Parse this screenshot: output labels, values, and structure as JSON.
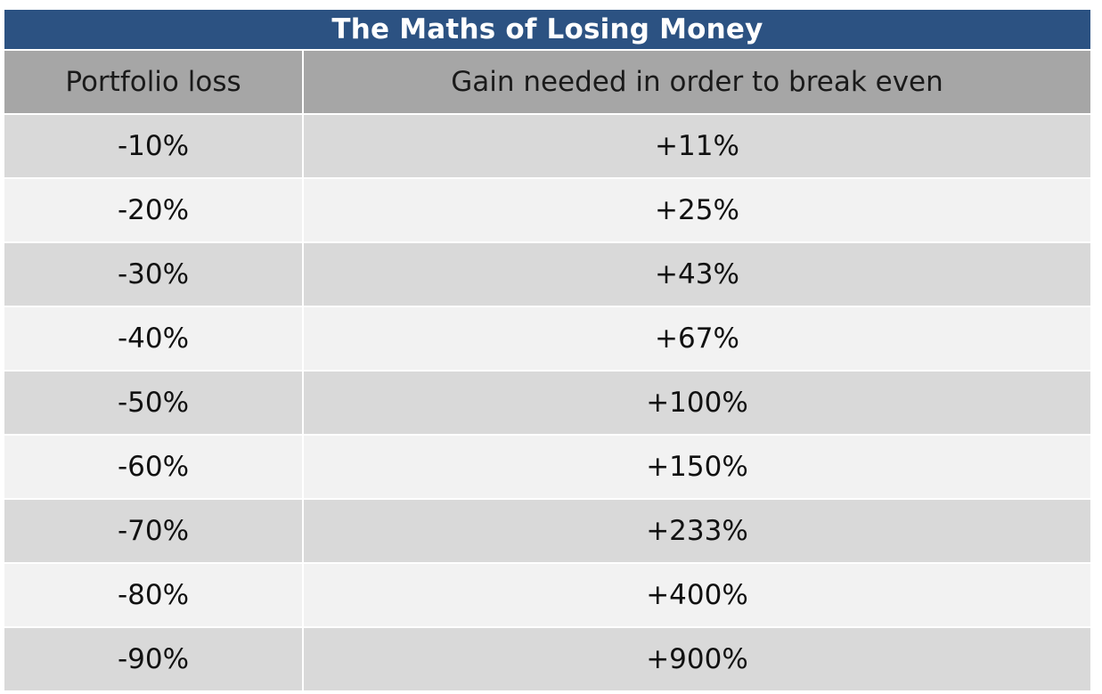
{
  "chart_data": {
    "type": "table",
    "title": "The Maths of Losing Money",
    "columns": [
      "Portfolio loss",
      "Gain needed in order to break even"
    ],
    "rows": [
      [
        "-10%",
        "+11%"
      ],
      [
        "-20%",
        "+25%"
      ],
      [
        "-30%",
        "+43%"
      ],
      [
        "-40%",
        "+67%"
      ],
      [
        "-50%",
        "+100%"
      ],
      [
        "-60%",
        "+150%"
      ],
      [
        "-70%",
        "+233%"
      ],
      [
        "-80%",
        "+400%"
      ],
      [
        "-90%",
        "+900%"
      ]
    ]
  },
  "colors": {
    "title_bar": "#2c5282",
    "header_row": "#a6a6a6",
    "row_dark": "#d9d9d9",
    "row_light": "#f2f2f2"
  }
}
